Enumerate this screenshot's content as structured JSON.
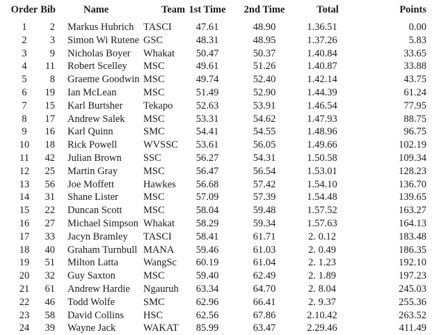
{
  "headers": {
    "order": "Order",
    "bib": "Bib",
    "name": "Name",
    "team": "Team",
    "t1": "1st Time",
    "t2": "2nd Time",
    "tot": "Total",
    "pts": "Points"
  },
  "rows": [
    {
      "order": "1",
      "bib": "2",
      "name": "Markus Hubrich",
      "team": "TASCI",
      "t1": "47.61",
      "t2": "48.90",
      "tot": "1.36.51",
      "pts": "0.00"
    },
    {
      "order": "2",
      "bib": "3",
      "name": "Simon Wi Rutene",
      "team": "GSC",
      "t1": "48.31",
      "t2": "48.95",
      "tot": "1.37.26",
      "pts": "5.83"
    },
    {
      "order": "3",
      "bib": "9",
      "name": "Nicholas Boyer",
      "team": "Whakat",
      "t1": "50.47",
      "t2": "50.37",
      "tot": "1.40.84",
      "pts": "33.65"
    },
    {
      "order": "4",
      "bib": "11",
      "name": "Robert Scelley",
      "team": "MSC",
      "t1": "49.61",
      "t2": "51.26",
      "tot": "1.40.87",
      "pts": "33.88"
    },
    {
      "order": "5",
      "bib": "8",
      "name": "Graeme Goodwin",
      "team": "MSC",
      "t1": "49.74",
      "t2": "52.40",
      "tot": "1.42.14",
      "pts": "43.75"
    },
    {
      "order": "6",
      "bib": "19",
      "name": "Ian McLean",
      "team": "MSC",
      "t1": "51.49",
      "t2": "52.90",
      "tot": "1.44.39",
      "pts": "61.24"
    },
    {
      "order": "7",
      "bib": "15",
      "name": "Karl Burtsher",
      "team": "Tekapo",
      "t1": "52.63",
      "t2": "53.91",
      "tot": "1.46.54",
      "pts": "77.95"
    },
    {
      "order": "8",
      "bib": "17",
      "name": "Andrew Salek",
      "team": "MSC",
      "t1": "53.31",
      "t2": "54.62",
      "tot": "1.47.93",
      "pts": "88.75"
    },
    {
      "order": "9",
      "bib": "16",
      "name": "Karl Quinn",
      "team": "SMC",
      "t1": "54.41",
      "t2": "54.55",
      "tot": "1.48.96",
      "pts": "96.75"
    },
    {
      "order": "10",
      "bib": "18",
      "name": "Rick Powell",
      "team": "WVSSC",
      "t1": "53.61",
      "t2": "56.05",
      "tot": "1.49.66",
      "pts": "102.19"
    },
    {
      "order": "11",
      "bib": "42",
      "name": "Julian Brown",
      "team": "SSC",
      "t1": "56.27",
      "t2": "54.31",
      "tot": "1.50.58",
      "pts": "109.34"
    },
    {
      "order": "12",
      "bib": "25",
      "name": "Martin Gray",
      "team": "MSC",
      "t1": "56.47",
      "t2": "56.54",
      "tot": "1.53.01",
      "pts": "128.23"
    },
    {
      "order": "13",
      "bib": "56",
      "name": "Joe Moffett",
      "team": "Hawkes",
      "t1": "56.68",
      "t2": "57.42",
      "tot": "1.54.10",
      "pts": "136.70"
    },
    {
      "order": "14",
      "bib": "31",
      "name": "Shane Lister",
      "team": "MSC",
      "t1": "57.09",
      "t2": "57.39",
      "tot": "1.54.48",
      "pts": "139.65"
    },
    {
      "order": "15",
      "bib": "22",
      "name": "Duncan Scott",
      "team": "MSC",
      "t1": "58.04",
      "t2": "59.48",
      "tot": "1.57.52",
      "pts": "163.27"
    },
    {
      "order": "16",
      "bib": "27",
      "name": "Michael Simpson",
      "team": "Whakat",
      "t1": "58.29",
      "t2": "59.34",
      "tot": "1.57.63",
      "pts": "164.13"
    },
    {
      "order": "17",
      "bib": "33",
      "name": "Jacyn Bramley",
      "team": "TASCI",
      "t1": "58.41",
      "t2": "61.71",
      "tot": "2. 0.12",
      "pts": "183.48"
    },
    {
      "order": "18",
      "bib": "40",
      "name": "Graham Turnbull",
      "team": "MANA",
      "t1": "59.46",
      "t2": "61.03",
      "tot": "2. 0.49",
      "pts": "186.35"
    },
    {
      "order": "19",
      "bib": "51",
      "name": "Milton Latta",
      "team": "WangSc",
      "t1": "60.19",
      "t2": "61.04",
      "tot": "2. 1.23",
      "pts": "192.10"
    },
    {
      "order": "20",
      "bib": "32",
      "name": "Guy Saxton",
      "team": "MSC",
      "t1": "59.40",
      "t2": "62.49",
      "tot": "2. 1.89",
      "pts": "197.23"
    },
    {
      "order": "21",
      "bib": "61",
      "name": "Andrew Hardie",
      "team": "Ngauruh",
      "t1": "63.34",
      "t2": "64.70",
      "tot": "2. 8.04",
      "pts": "245.03"
    },
    {
      "order": "22",
      "bib": "46",
      "name": "Todd Wolfe",
      "team": "SMC",
      "t1": "62.96",
      "t2": "66.41",
      "tot": "2. 9.37",
      "pts": "255.36"
    },
    {
      "order": "23",
      "bib": "58",
      "name": "David Collins",
      "team": "HSC",
      "t1": "62.56",
      "t2": "67.86",
      "tot": "2.10.42",
      "pts": "263.52"
    },
    {
      "order": "24",
      "bib": "39",
      "name": "Wayne Jack",
      "team": "WAKAT",
      "t1": "85.99",
      "t2": "63.47",
      "tot": "2.29.46",
      "pts": "411.49"
    }
  ]
}
